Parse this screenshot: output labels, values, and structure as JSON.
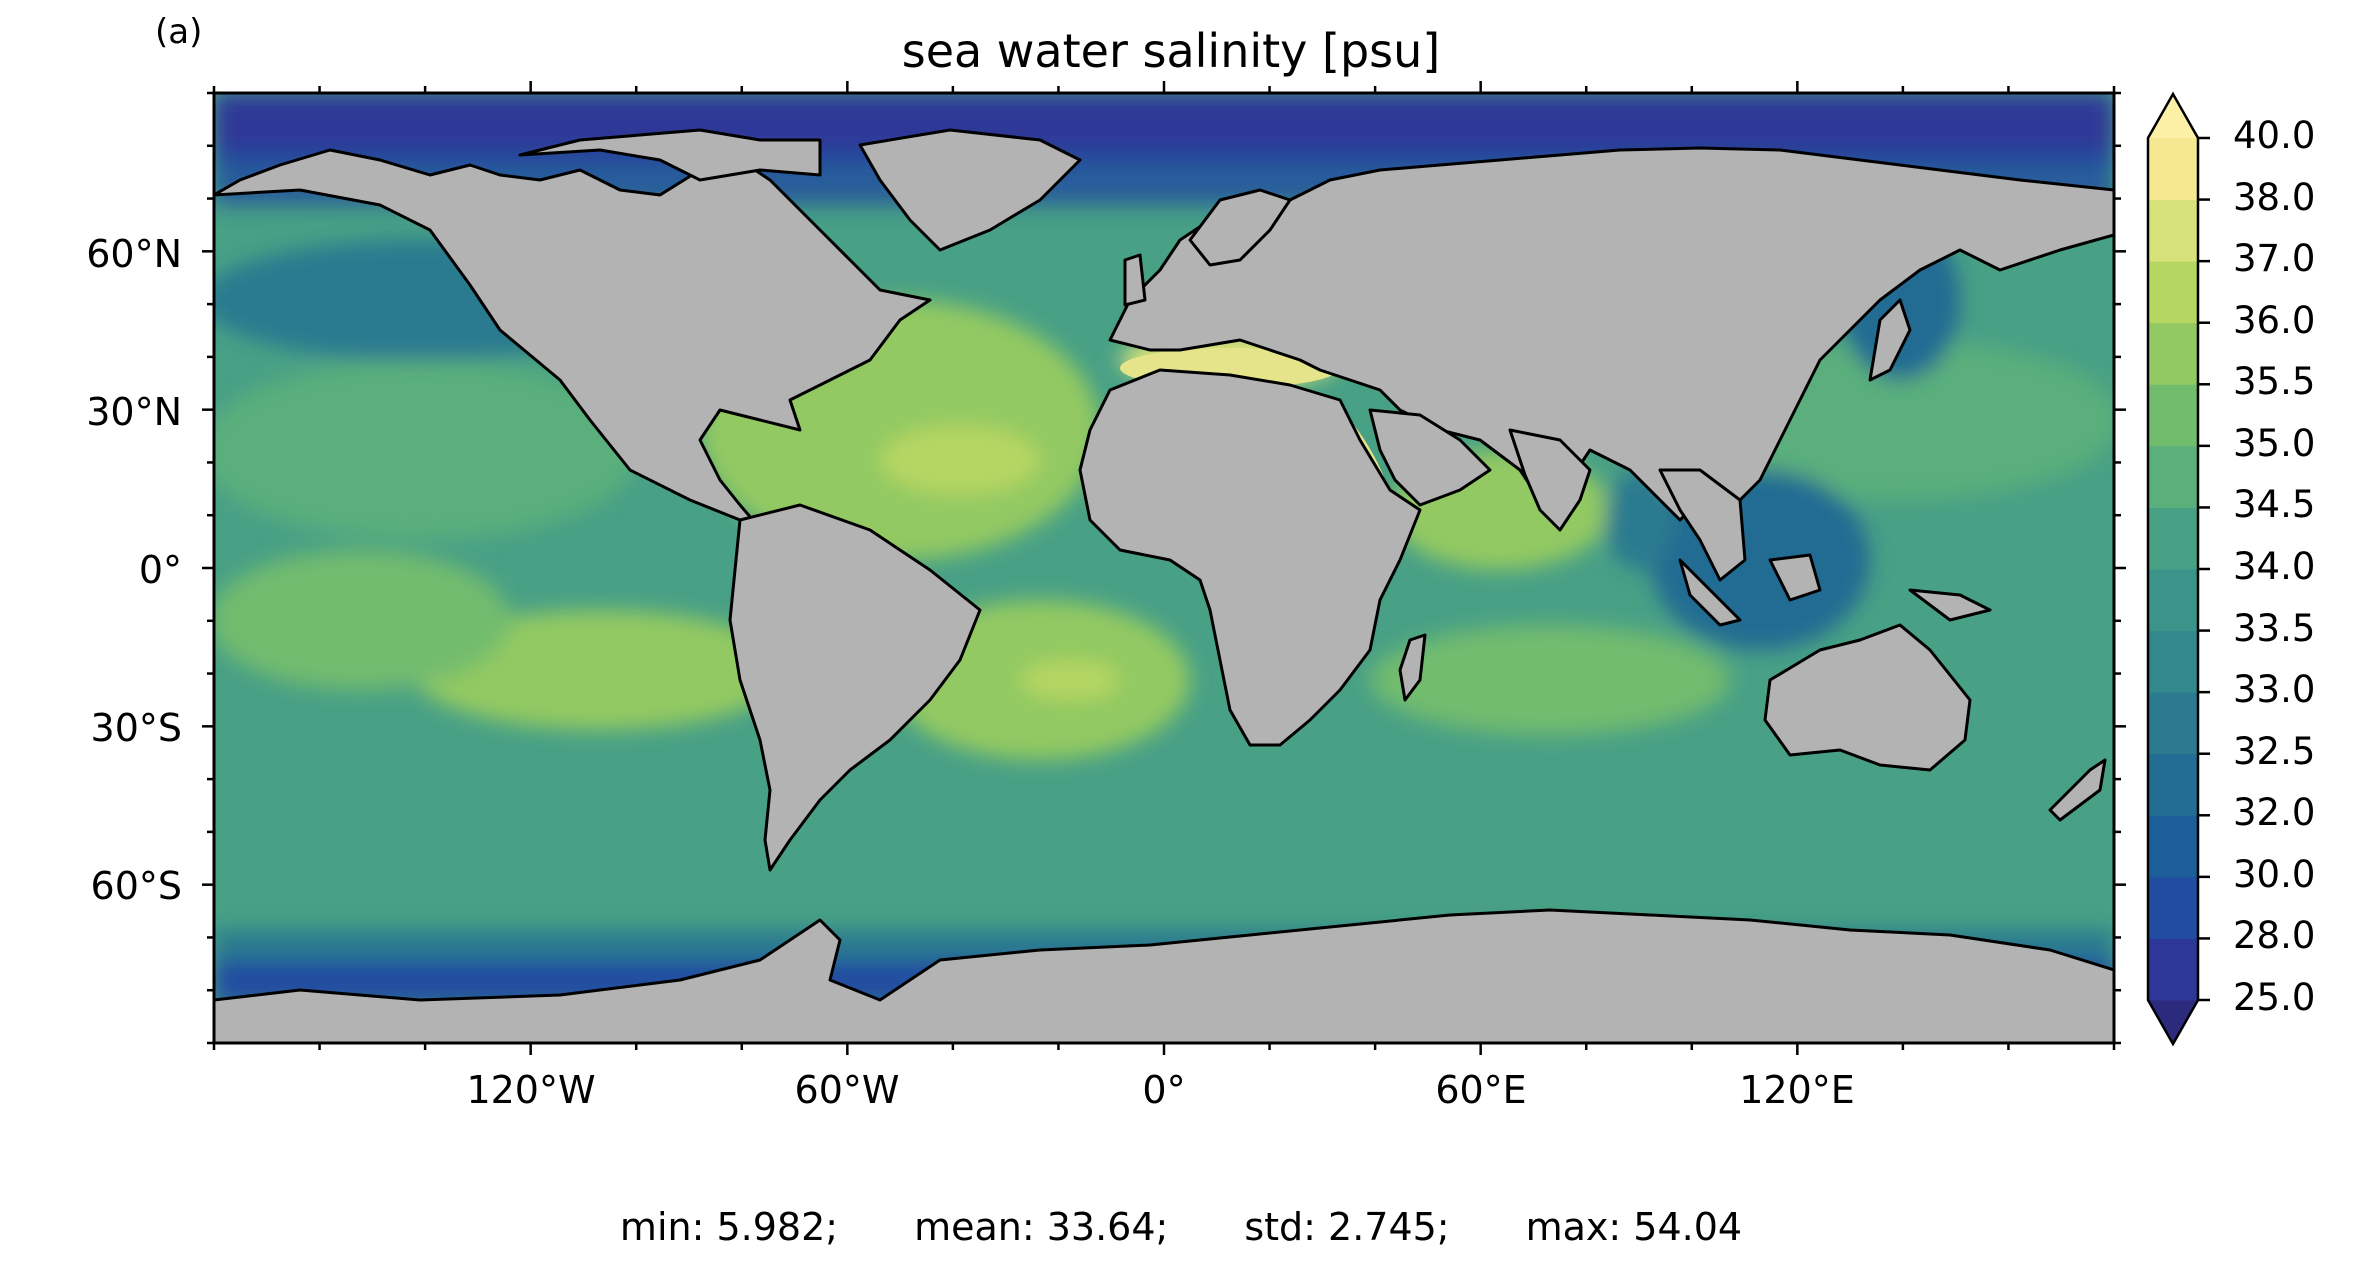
{
  "panel_label": "(a)",
  "title": "sea water salinity [psu]",
  "map": {
    "projection": "PlateCarree",
    "extent": {
      "lon": [
        -180,
        180
      ],
      "lat": [
        -90,
        90
      ]
    },
    "land_color": "#b3b3b3",
    "ocean_colormap": "haline",
    "lat_ticks": [
      {
        "lat": 60,
        "label": "60°N"
      },
      {
        "lat": 30,
        "label": "30°N"
      },
      {
        "lat": 0,
        "label": "0°"
      },
      {
        "lat": -30,
        "label": "30°S"
      },
      {
        "lat": -60,
        "label": "60°S"
      }
    ],
    "lon_ticks": [
      {
        "lon": -120,
        "label": "120°W"
      },
      {
        "lon": -60,
        "label": "60°W"
      },
      {
        "lon": 0,
        "label": "0°"
      },
      {
        "lon": 60,
        "label": "60°E"
      },
      {
        "lon": 120,
        "label": "120°E"
      }
    ]
  },
  "colorbar": {
    "levels": [
      "25.0",
      "28.0",
      "30.0",
      "32.0",
      "32.5",
      "33.0",
      "33.5",
      "34.0",
      "34.5",
      "35.0",
      "35.5",
      "36.0",
      "37.0",
      "38.0",
      "40.0"
    ],
    "colors": [
      "#2b2a7c",
      "#2d3797",
      "#214da0",
      "#1b5e98",
      "#236c93",
      "#2b7a90",
      "#33888c",
      "#3a948a",
      "#48a085",
      "#5aaf7b",
      "#72bc6e",
      "#92c962",
      "#b6d662",
      "#d8e27a",
      "#f5e891",
      "#fbf0a6"
    ],
    "extend": "both"
  },
  "stats": {
    "min": "min: 5.982;",
    "mean": "mean: 33.64;",
    "std": "std: 2.745;",
    "max": "max: 54.04"
  }
}
